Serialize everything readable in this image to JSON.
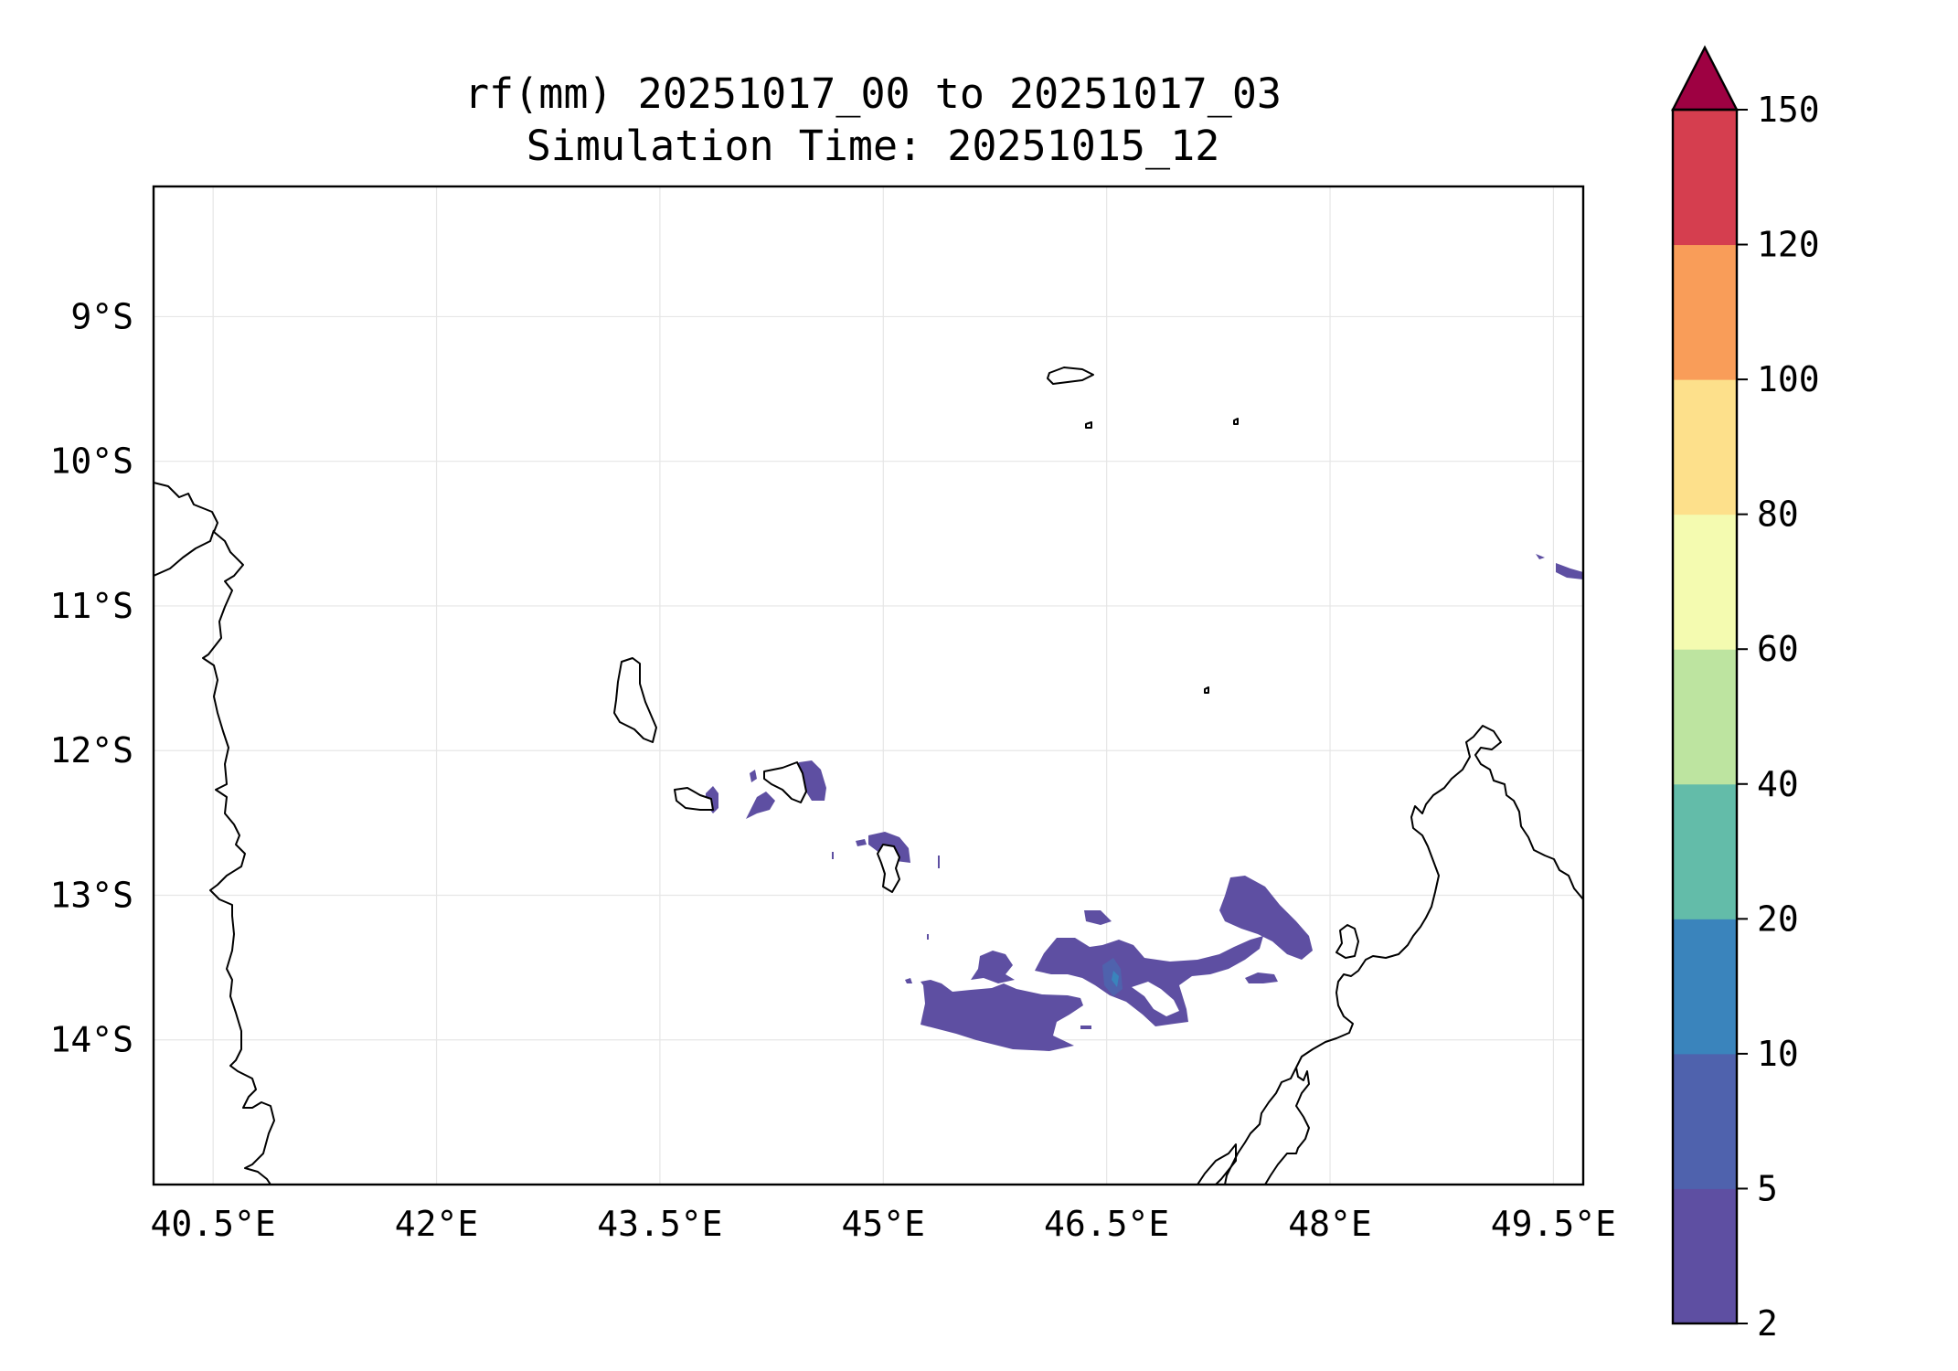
{
  "figure": {
    "title_line1": "rf(mm) 20251017_00 to 20251017_03",
    "title_line2": "Simulation Time: 20251015_12"
  },
  "chart_data": {
    "type": "map-contour",
    "extent": {
      "lon_min": 40.1,
      "lon_max": 49.7,
      "lat_min": -15.0,
      "lat_max": -8.1
    },
    "x_ticks": [
      {
        "lon": 40.5,
        "label": "40.5°E"
      },
      {
        "lon": 42.0,
        "label": "42°E"
      },
      {
        "lon": 43.5,
        "label": "43.5°E"
      },
      {
        "lon": 45.0,
        "label": "45°E"
      },
      {
        "lon": 46.5,
        "label": "46.5°E"
      },
      {
        "lon": 48.0,
        "label": "48°E"
      },
      {
        "lon": 49.5,
        "label": "49.5°E"
      }
    ],
    "y_ticks": [
      {
        "lat": -9,
        "label": "9°S"
      },
      {
        "lat": -10,
        "label": "10°S"
      },
      {
        "lat": -11,
        "label": "11°S"
      },
      {
        "lat": -12,
        "label": "12°S"
      },
      {
        "lat": -13,
        "label": "13°S"
      },
      {
        "lat": -14,
        "label": "14°S"
      }
    ],
    "grid": true,
    "colorbar": {
      "levels": [
        2,
        5,
        10,
        20,
        40,
        60,
        80,
        100,
        120,
        150
      ],
      "labels": [
        "2",
        "5",
        "10",
        "20",
        "40",
        "60",
        "80",
        "100",
        "120",
        "150"
      ],
      "colors": [
        "#5e4fa2",
        "#4f62ad",
        "#3a84bc",
        "#63bca9",
        "#bde4a0",
        "#f4fbb0",
        "#fde08b",
        "#f99d59",
        "#d53e4f"
      ],
      "extend_color": "#9e0142",
      "extend": "max",
      "placement": "right"
    },
    "rain_color": "#5e4fa2",
    "rain_color_5_10": "#4f62ad",
    "rain_color_10_20": "#3a84bc"
  }
}
